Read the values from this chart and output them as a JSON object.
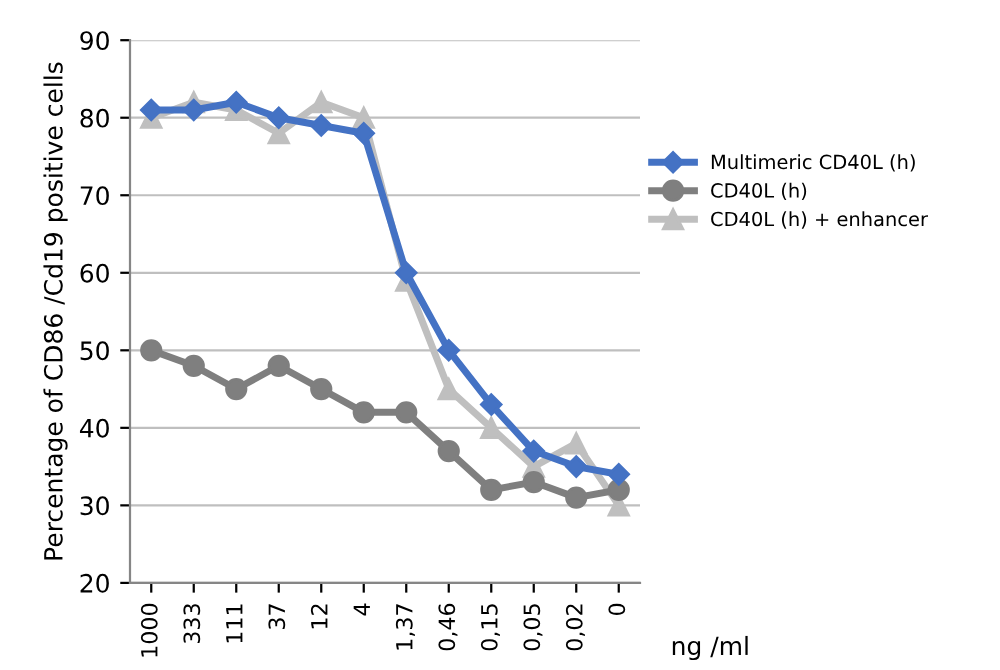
{
  "chart_data": {
    "type": "line",
    "ylabel": "Percentage of CD86 /Cd19 positive cells",
    "xlabel": "ng /ml",
    "categories": [
      "1000",
      "333",
      "111",
      "37",
      "12",
      "4",
      "1,37",
      "0,46",
      "0,15",
      "0,05",
      "0,02",
      "0"
    ],
    "series": [
      {
        "name": "Multimeric CD40L (h)",
        "color": "#4472c4",
        "marker": "diamond",
        "values": [
          81,
          81,
          82,
          80,
          79,
          78,
          60,
          50,
          43,
          37,
          35,
          34
        ]
      },
      {
        "name": "CD40L (h)",
        "color": "#7f7f7f",
        "marker": "circle",
        "values": [
          50,
          48,
          45,
          48,
          45,
          42,
          42,
          37,
          32,
          33,
          31,
          32
        ]
      },
      {
        "name": "CD40L (h) + enhancer",
        "color": "#bfbfbf",
        "marker": "triangle",
        "values": [
          80,
          82,
          81,
          78,
          82,
          80,
          59,
          45,
          40,
          35,
          38,
          30
        ]
      }
    ],
    "ylim": [
      20,
      90
    ],
    "yticks": [
      20,
      30,
      40,
      50,
      60,
      70,
      80,
      90
    ],
    "grid": "y",
    "legend": "right"
  }
}
